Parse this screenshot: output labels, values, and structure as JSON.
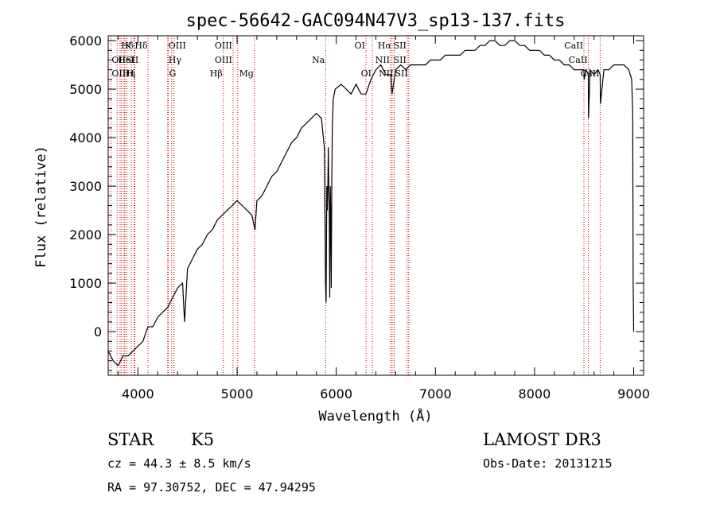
{
  "chart_data": {
    "type": "line",
    "title": "spec-56642-GAC094N47V3_sp13-137.fits",
    "xlabel": "Wavelength (Å)",
    "ylabel": "Flux (relative)",
    "xlim": [
      3700,
      9100
    ],
    "ylim": [
      -900,
      6100
    ],
    "x_ticks": [
      4000,
      5000,
      6000,
      7000,
      8000,
      9000
    ],
    "y_ticks": [
      0,
      1000,
      2000,
      3000,
      4000,
      5000,
      6000
    ],
    "grid": false,
    "series": [
      {
        "name": "flux",
        "x": [
          3700,
          3750,
          3800,
          3850,
          3900,
          3950,
          4000,
          4050,
          4100,
          4150,
          4200,
          4250,
          4300,
          4350,
          4400,
          4450,
          4470,
          4500,
          4550,
          4600,
          4650,
          4700,
          4750,
          4800,
          4850,
          4900,
          4950,
          5000,
          5050,
          5100,
          5150,
          5180,
          5200,
          5250,
          5300,
          5350,
          5400,
          5450,
          5500,
          5550,
          5600,
          5650,
          5700,
          5750,
          5800,
          5850,
          5880,
          5892,
          5898,
          5905,
          5910,
          5915,
          5920,
          5925,
          5930,
          5935,
          5940,
          5945,
          5950,
          5955,
          5960,
          5970,
          5990,
          6050,
          6100,
          6150,
          6200,
          6250,
          6300,
          6350,
          6400,
          6450,
          6500,
          6550,
          6563,
          6600,
          6650,
          6700,
          6750,
          6800,
          6850,
          6900,
          6950,
          7000,
          7050,
          7100,
          7150,
          7200,
          7250,
          7300,
          7350,
          7400,
          7450,
          7500,
          7550,
          7600,
          7650,
          7700,
          7750,
          7800,
          7850,
          7900,
          7950,
          8000,
          8050,
          8100,
          8150,
          8200,
          8250,
          8300,
          8350,
          8400,
          8450,
          8498,
          8500,
          8520,
          8542,
          8545,
          8560,
          8600,
          8640,
          8662,
          8665,
          8700,
          8750,
          8800,
          8850,
          8900,
          8950,
          8980,
          8990,
          8995,
          9000
        ],
        "y": [
          -400,
          -600,
          -700,
          -500,
          -500,
          -400,
          -300,
          -200,
          100,
          100,
          300,
          400,
          500,
          700,
          900,
          1000,
          200,
          1300,
          1500,
          1700,
          1800,
          2000,
          2100,
          2300,
          2400,
          2500,
          2600,
          2700,
          2600,
          2500,
          2400,
          2100,
          2700,
          2800,
          3000,
          3200,
          3300,
          3500,
          3700,
          3900,
          4000,
          4200,
          4300,
          4400,
          4500,
          4400,
          3800,
          1000,
          600,
          3000,
          2500,
          3000,
          3800,
          3000,
          2500,
          700,
          3000,
          2400,
          900,
          3000,
          4200,
          4800,
          5000,
          5100,
          5000,
          4900,
          5100,
          4900,
          4900,
          5200,
          5400,
          5500,
          5300,
          5300,
          4900,
          5400,
          5500,
          5400,
          5500,
          5500,
          5500,
          5500,
          5600,
          5600,
          5600,
          5700,
          5700,
          5700,
          5700,
          5800,
          5800,
          5800,
          5900,
          5900,
          6000,
          6000,
          5900,
          5900,
          6000,
          6000,
          5900,
          5900,
          5800,
          5800,
          5800,
          5700,
          5700,
          5600,
          5600,
          5500,
          5500,
          5400,
          5400,
          5400,
          5200,
          5400,
          5300,
          4400,
          5400,
          5300,
          5400,
          5300,
          4700,
          5400,
          5400,
          5500,
          5500,
          5500,
          5400,
          5200,
          4500,
          1000,
          0
        ]
      }
    ],
    "lines": [
      {
        "label": "Hδ",
        "x": 3820,
        "row": 0,
        "side": "right"
      },
      {
        "label": "K",
        "x": 3860,
        "row": 0,
        "side": "right"
      },
      {
        "label": "Hδ",
        "x": 3960,
        "row": 0,
        "side": "right"
      },
      {
        "label": "OII",
        "x": 3727,
        "row": 1,
        "side": "right"
      },
      {
        "label": "HeI",
        "x": 3790,
        "row": 1,
        "side": "right"
      },
      {
        "label": "SII",
        "x": 3868,
        "row": 1,
        "side": "right"
      },
      {
        "label": "OIII",
        "x": 3727,
        "row": 2,
        "side": "right"
      },
      {
        "label": "Hη",
        "x": 3835,
        "row": 2,
        "side": "right"
      },
      {
        "label": "H",
        "x": 3969,
        "row": 2,
        "side": "left"
      },
      {
        "label": "OIII",
        "x": 4300,
        "row": 0,
        "side": "right"
      },
      {
        "label": "Hγ",
        "x": 4300,
        "row": 1,
        "side": "right"
      },
      {
        "label": "G",
        "x": 4307,
        "row": 2,
        "side": "right"
      },
      {
        "label": "OIII",
        "x": 4959,
        "row": 0,
        "side": "left"
      },
      {
        "label": "OIII",
        "x": 4959,
        "row": 1,
        "side": "left"
      },
      {
        "label": "Hβ",
        "x": 4861,
        "row": 2,
        "side": "left"
      },
      {
        "label": "Mg",
        "x": 5175,
        "row": 2,
        "side": "left"
      },
      {
        "label": "Na",
        "x": 5893,
        "row": 1,
        "side": "left"
      },
      {
        "label": "OI",
        "x": 6300,
        "row": 0,
        "side": "left"
      },
      {
        "label": "OI",
        "x": 6364,
        "row": 2,
        "side": "left"
      },
      {
        "label": "Hα",
        "x": 6563,
        "row": 0,
        "side": "left"
      },
      {
        "label": "SII",
        "x": 6716,
        "row": 0,
        "side": "left"
      },
      {
        "label": "NII",
        "x": 6548,
        "row": 1,
        "side": "left"
      },
      {
        "label": "SII",
        "x": 6716,
        "row": 1,
        "side": "left"
      },
      {
        "label": "NII",
        "x": 6584,
        "row": 2,
        "side": "left"
      },
      {
        "label": "SII",
        "x": 6731,
        "row": 2,
        "side": "left"
      },
      {
        "label": "CaII",
        "x": 8498,
        "row": 0,
        "side": "left"
      },
      {
        "label": "CaII",
        "x": 8542,
        "row": 1,
        "side": "left"
      },
      {
        "label": "CaII",
        "x": 8662,
        "row": 2,
        "side": "left"
      }
    ],
    "extra_line_x": [
      3889,
      3934,
      4102,
      4340,
      4363,
      5007,
      6583,
      6731
    ]
  },
  "info": {
    "object_type": "STAR",
    "subclass": "K5",
    "survey": "LAMOST DR3",
    "cz_line": "cz = 44.3 ± 8.5 km/s",
    "obs_date": "Obs-Date: 20131215",
    "coords": "RA =  97.30752, DEC =  47.94295"
  },
  "colors": {
    "line_marker": "#cc0000",
    "spectrum": "#000000"
  }
}
